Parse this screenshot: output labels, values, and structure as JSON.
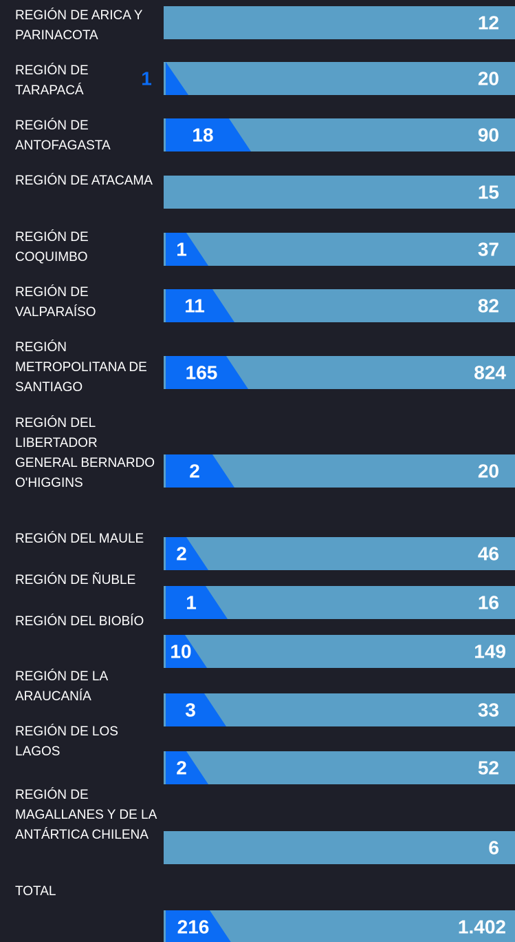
{
  "rows": [
    {
      "region": "REGIÓN DE ARICA Y PARINACOTA",
      "b": "12"
    },
    {
      "region": "REGIÓN DE TARAPACÁ",
      "a": "1",
      "b": "20"
    },
    {
      "region": "REGIÓN DE ANTOFAGASTA",
      "a": "18",
      "b": "90"
    },
    {
      "region": "REGIÓN DE ATACAMA",
      "b": "15"
    },
    {
      "region": "REGIÓN DE COQUIMBO",
      "a": "1",
      "b": "37"
    },
    {
      "region": "REGIÓN DE VALPARAÍSO",
      "a": "11",
      "b": "82"
    },
    {
      "region": "REGIÓN METROPOLITANA DE SANTIAGO",
      "a": "165",
      "b": "824"
    },
    {
      "region": "REGIÓN DEL LIBERTADOR GENERAL BERNARDO O'HIGGINS",
      "a": "2",
      "b": "20"
    },
    {
      "region": "REGIÓN DEL MAULE",
      "a": "2",
      "b": "46"
    },
    {
      "region": "REGIÓN DE ÑUBLE",
      "a": "1",
      "b": "16"
    },
    {
      "region": "REGIÓN DEL BIOBÍO",
      "a": "10",
      "b": "149"
    },
    {
      "region": "REGIÓN DE LA ARAUCANÍA",
      "a": "3",
      "b": "33"
    },
    {
      "region": "REGIÓN DE LOS LAGOS",
      "a": "2",
      "b": "52"
    },
    {
      "region": "REGIÓN DE MAGALLANES Y DE LA ANTÁRTICA CHILENA",
      "b": "6"
    },
    {
      "region": "TOTAL",
      "a": "216",
      "b": "1.402"
    }
  ]
}
